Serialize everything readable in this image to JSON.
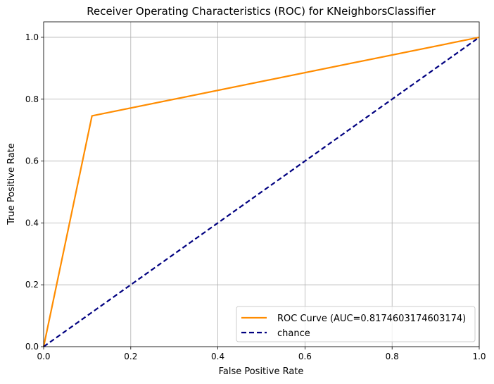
{
  "chart_data": {
    "type": "line",
    "title": "Receiver Operating Characteristics (ROC) for KNeighborsClassifier",
    "xlabel": "False Positive Rate",
    "ylabel": "True Positive Rate",
    "xlim": [
      0.0,
      1.0
    ],
    "ylim": [
      0.0,
      1.05
    ],
    "xticks": [
      "0.0",
      "0.2",
      "0.4",
      "0.6",
      "0.8",
      "1.0"
    ],
    "yticks": [
      "0.0",
      "0.2",
      "0.4",
      "0.6",
      "0.8",
      "1.0"
    ],
    "grid": true,
    "legend_position": "lower-right",
    "series": [
      {
        "name": "ROC Curve (AUC=0.8174603174603174)",
        "color": "#ff8c00",
        "style": "solid",
        "x": [
          0.0,
          0.111,
          1.0
        ],
        "y": [
          0.0,
          0.746,
          1.0
        ]
      },
      {
        "name": "chance",
        "color": "#000080",
        "style": "dashed",
        "x": [
          0.0,
          1.0
        ],
        "y": [
          0.0,
          1.0
        ]
      }
    ]
  }
}
